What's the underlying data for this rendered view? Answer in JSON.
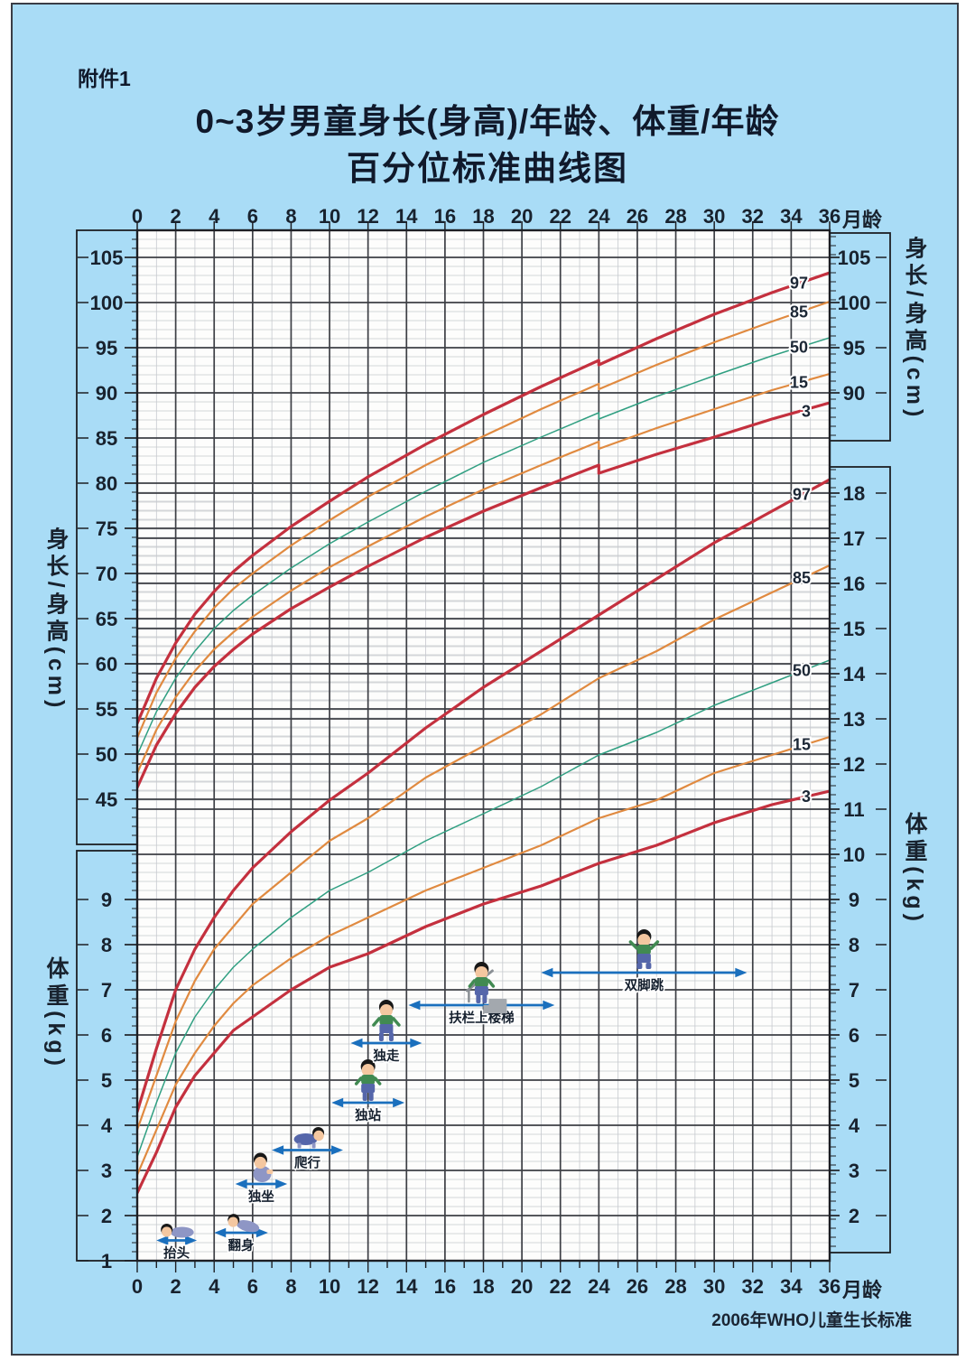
{
  "page": {
    "attachment_label": "附件1",
    "title_line1": "0~3岁男童身长(身高)/年龄、体重/年龄",
    "title_line2": "百分位标准曲线图",
    "footer_note": "2006年WHO儿童生长标准"
  },
  "axis_titles": {
    "height": "身长/身高(cm)",
    "weight": "体重(kg)",
    "month_unit": "月龄"
  },
  "chart_data": {
    "type": "line",
    "title": "0~3岁男童身长(身高)/年龄、体重/年龄百分位标准曲线图",
    "x_label": "月龄",
    "x_range": [
      0,
      36
    ],
    "x_ticks": [
      0,
      2,
      4,
      6,
      8,
      10,
      12,
      14,
      16,
      18,
      20,
      22,
      24,
      26,
      28,
      30,
      32,
      34,
      36
    ],
    "height_axis_ticks": [
      105,
      100,
      95,
      90,
      85,
      80,
      75,
      70,
      65,
      60,
      55,
      50,
      45
    ],
    "height_axis_right_ticks": [
      105,
      100,
      95,
      90
    ],
    "weight_axis_left_ticks": [
      9,
      8,
      7,
      6,
      5,
      4,
      3,
      2,
      1
    ],
    "weight_axis_right_ticks": [
      18,
      17,
      16,
      15,
      14,
      13,
      12,
      11,
      10,
      9,
      8,
      7,
      6,
      5,
      4,
      3,
      2
    ],
    "grid": "on",
    "measurement_break_month": 24,
    "colors": {
      "p97_p3": "#c4303e",
      "p85_p15": "#e08a40",
      "p50": "#2f9f81",
      "arrow": "#1a6fbd",
      "grid_major": "#3d3f45",
      "grid_minor": "#c6c9ce"
    },
    "height_for_age": {
      "unit": "cm",
      "months_length": [
        0,
        1,
        2,
        3,
        4,
        5,
        6,
        8,
        10,
        12,
        15,
        18,
        21,
        24
      ],
      "months_height": [
        24,
        27,
        30,
        33,
        36
      ],
      "series": [
        {
          "name": "97",
          "length_values": [
            53.4,
            58.4,
            62.3,
            65.5,
            68.0,
            70.2,
            72.0,
            75.2,
            78.0,
            80.7,
            84.3,
            87.6,
            90.7,
            93.6
          ],
          "height_values": [
            93.1,
            96.0,
            98.7,
            101.1,
            103.3
          ]
        },
        {
          "name": "85",
          "length_values": [
            51.8,
            56.8,
            60.6,
            63.6,
            66.2,
            68.3,
            70.0,
            73.1,
            75.9,
            78.5,
            82.0,
            85.2,
            88.2,
            91.0
          ],
          "height_values": [
            90.4,
            93.1,
            95.6,
            97.9,
            100.1
          ]
        },
        {
          "name": "50",
          "length_values": [
            49.9,
            54.7,
            58.4,
            61.4,
            63.9,
            65.9,
            67.6,
            70.6,
            73.3,
            75.7,
            79.1,
            82.3,
            85.1,
            87.8
          ],
          "height_values": [
            87.1,
            89.6,
            91.9,
            94.1,
            96.1
          ]
        },
        {
          "name": "15",
          "length_values": [
            47.9,
            52.7,
            56.3,
            59.2,
            61.6,
            63.5,
            65.2,
            68.1,
            70.7,
            73.0,
            76.3,
            79.3,
            82.0,
            84.6
          ],
          "height_values": [
            83.8,
            86.1,
            88.2,
            90.3,
            92.1
          ]
        },
        {
          "name": "3",
          "length_values": [
            46.3,
            51.0,
            54.5,
            57.4,
            59.7,
            61.6,
            63.3,
            66.1,
            68.5,
            70.8,
            74.0,
            76.9,
            79.5,
            82.0
          ],
          "height_values": [
            81.1,
            83.2,
            85.1,
            87.1,
            88.9
          ]
        }
      ]
    },
    "weight_for_age": {
      "unit": "kg",
      "months": [
        0,
        1,
        2,
        3,
        4,
        5,
        6,
        8,
        10,
        12,
        15,
        18,
        21,
        24,
        27,
        30,
        33,
        36
      ],
      "series": [
        {
          "name": "97",
          "values": [
            4.3,
            5.7,
            7.0,
            7.9,
            8.6,
            9.2,
            9.7,
            10.5,
            11.2,
            11.8,
            12.8,
            13.7,
            14.5,
            15.3,
            16.1,
            16.9,
            17.6,
            18.3
          ]
        },
        {
          "name": "85",
          "values": [
            3.9,
            5.1,
            6.3,
            7.2,
            7.9,
            8.4,
            8.9,
            9.6,
            10.3,
            10.8,
            11.7,
            12.4,
            13.1,
            13.9,
            14.5,
            15.2,
            15.8,
            16.4
          ]
        },
        {
          "name": "50",
          "values": [
            3.3,
            4.5,
            5.6,
            6.4,
            7.0,
            7.5,
            7.9,
            8.6,
            9.2,
            9.6,
            10.3,
            10.9,
            11.5,
            12.2,
            12.7,
            13.3,
            13.8,
            14.3
          ]
        },
        {
          "name": "15",
          "values": [
            2.9,
            3.9,
            4.9,
            5.6,
            6.2,
            6.7,
            7.1,
            7.7,
            8.2,
            8.6,
            9.2,
            9.7,
            10.2,
            10.8,
            11.2,
            11.8,
            12.2,
            12.6
          ]
        },
        {
          "name": "3",
          "values": [
            2.5,
            3.4,
            4.4,
            5.1,
            5.6,
            6.1,
            6.4,
            7.0,
            7.5,
            7.8,
            8.4,
            8.9,
            9.3,
            9.8,
            10.2,
            10.7,
            11.1,
            11.4
          ]
        }
      ]
    },
    "milestones": [
      {
        "label": "抬头",
        "from_month": 1.0,
        "to_month": 3.1,
        "arrow_kg": 1.45,
        "icon": "lying"
      },
      {
        "label": "翻身",
        "from_month": 4.0,
        "to_month": 6.8,
        "arrow_kg": 1.62,
        "icon": "rolling"
      },
      {
        "label": "独坐",
        "from_month": 5.1,
        "to_month": 7.8,
        "arrow_kg": 2.7,
        "icon": "sitting"
      },
      {
        "label": "爬行",
        "from_month": 7.0,
        "to_month": 10.7,
        "arrow_kg": 3.45,
        "icon": "crawling"
      },
      {
        "label": "独站",
        "from_month": 10.1,
        "to_month": 13.9,
        "arrow_kg": 4.5,
        "icon": "standing"
      },
      {
        "label": "独走",
        "from_month": 11.1,
        "to_month": 14.8,
        "arrow_kg": 5.82,
        "icon": "walking"
      },
      {
        "label": "扶栏上楼梯",
        "from_month": 14.1,
        "to_month": 21.7,
        "arrow_kg": 6.66,
        "icon": "stairs"
      },
      {
        "label": "双脚跳",
        "from_month": 21.0,
        "to_month": 31.7,
        "arrow_kg": 7.38,
        "icon": "jumping"
      }
    ],
    "source_note": "2006年WHO儿童生长标准"
  }
}
